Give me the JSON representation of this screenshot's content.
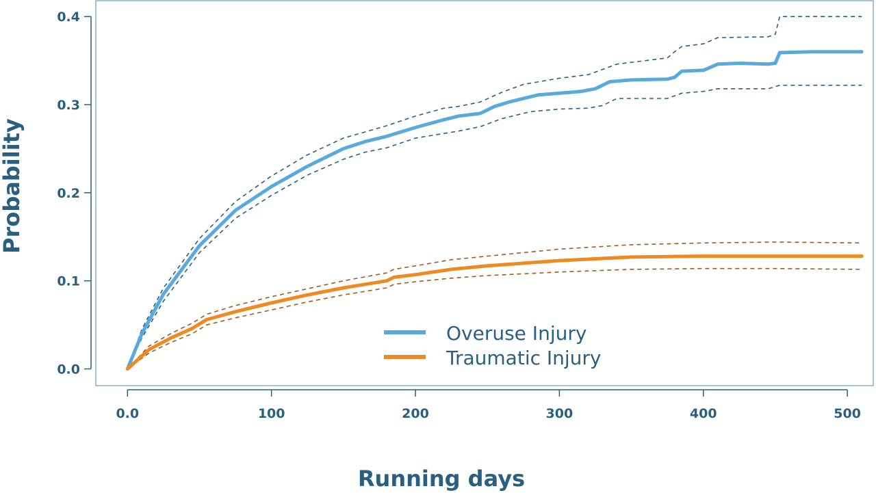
{
  "chart_data": {
    "type": "line",
    "title": "",
    "xlabel": "Running days",
    "ylabel": "Probability",
    "xlim": [
      -22,
      518
    ],
    "ylim": [
      -0.019,
      0.418
    ],
    "x_ticks": [
      0,
      100,
      200,
      300,
      400,
      500
    ],
    "x_tick_labels": [
      "0.0",
      "100",
      "200",
      "300",
      "400",
      "500"
    ],
    "y_ticks": [
      0.0,
      0.1,
      0.2,
      0.3,
      0.4
    ],
    "y_tick_labels": [
      "0.0",
      "0.1",
      "0.2",
      "0.3",
      "0.4"
    ],
    "grid": false,
    "legend_position": "center-bottom",
    "colors": {
      "overuse": "#5aa9dc",
      "overuse_ci": "#2a5f80",
      "traumatic": "#ee8a22",
      "traumatic_ci": "#a05a1e",
      "axis": "#2a5f80",
      "frame": "#8fb3c8"
    },
    "series": [
      {
        "name": "Overuse Injury",
        "style": "solid",
        "x": [
          0,
          10,
          25,
          50,
          75,
          100,
          125,
          150,
          165,
          180,
          200,
          220,
          230,
          245,
          255,
          265,
          285,
          300,
          315,
          325,
          335,
          350,
          375,
          380,
          385,
          400,
          410,
          425,
          445,
          450,
          453,
          475,
          510
        ],
        "y": [
          0.0,
          0.04,
          0.085,
          0.14,
          0.18,
          0.207,
          0.23,
          0.25,
          0.258,
          0.264,
          0.274,
          0.283,
          0.287,
          0.29,
          0.298,
          0.303,
          0.311,
          0.313,
          0.315,
          0.318,
          0.326,
          0.328,
          0.329,
          0.331,
          0.338,
          0.339,
          0.346,
          0.347,
          0.346,
          0.347,
          0.359,
          0.36,
          0.36
        ]
      },
      {
        "name": "Overuse Injury upper CI",
        "style": "dashed",
        "x": [
          0,
          10,
          25,
          50,
          75,
          100,
          125,
          150,
          165,
          180,
          200,
          220,
          230,
          245,
          260,
          275,
          300,
          320,
          330,
          340,
          375,
          380,
          385,
          400,
          410,
          445,
          450,
          453,
          510
        ],
        "y": [
          0.0,
          0.045,
          0.092,
          0.148,
          0.19,
          0.219,
          0.243,
          0.262,
          0.269,
          0.276,
          0.287,
          0.296,
          0.298,
          0.303,
          0.314,
          0.323,
          0.33,
          0.334,
          0.34,
          0.346,
          0.353,
          0.36,
          0.366,
          0.369,
          0.376,
          0.377,
          0.38,
          0.4,
          0.4
        ]
      },
      {
        "name": "Overuse Injury lower CI",
        "style": "dashed",
        "x": [
          0,
          10,
          25,
          50,
          75,
          100,
          125,
          150,
          165,
          180,
          200,
          230,
          245,
          260,
          280,
          300,
          320,
          330,
          340,
          375,
          385,
          400,
          410,
          445,
          453,
          510
        ],
        "y": [
          0.0,
          0.035,
          0.077,
          0.132,
          0.171,
          0.197,
          0.22,
          0.238,
          0.246,
          0.251,
          0.262,
          0.27,
          0.275,
          0.284,
          0.292,
          0.295,
          0.296,
          0.299,
          0.307,
          0.307,
          0.313,
          0.315,
          0.318,
          0.318,
          0.322,
          0.322
        ]
      },
      {
        "name": "Traumatic Injury",
        "style": "solid",
        "x": [
          0,
          15,
          30,
          45,
          55,
          75,
          100,
          125,
          150,
          180,
          185,
          200,
          225,
          250,
          300,
          350,
          400,
          450,
          510
        ],
        "y": [
          0.0,
          0.022,
          0.035,
          0.046,
          0.056,
          0.065,
          0.075,
          0.084,
          0.092,
          0.1,
          0.104,
          0.107,
          0.113,
          0.117,
          0.123,
          0.127,
          0.128,
          0.128,
          0.128
        ]
      },
      {
        "name": "Traumatic Injury upper CI",
        "style": "dashed",
        "x": [
          0,
          15,
          30,
          45,
          55,
          75,
          100,
          125,
          150,
          180,
          185,
          200,
          225,
          250,
          300,
          350,
          400,
          450,
          510
        ],
        "y": [
          0.0,
          0.026,
          0.04,
          0.052,
          0.062,
          0.072,
          0.082,
          0.091,
          0.1,
          0.109,
          0.113,
          0.117,
          0.124,
          0.128,
          0.136,
          0.141,
          0.143,
          0.144,
          0.143
        ]
      },
      {
        "name": "Traumatic Injury lower CI",
        "style": "dashed",
        "x": [
          0,
          15,
          30,
          45,
          55,
          75,
          100,
          125,
          150,
          180,
          185,
          200,
          225,
          250,
          300,
          350,
          400,
          450,
          510
        ],
        "y": [
          0.0,
          0.018,
          0.03,
          0.04,
          0.05,
          0.058,
          0.067,
          0.076,
          0.084,
          0.092,
          0.096,
          0.099,
          0.103,
          0.106,
          0.11,
          0.113,
          0.114,
          0.114,
          0.113
        ]
      }
    ],
    "legend": [
      {
        "label": "Overuse Injury",
        "color": "#5aa9dc"
      },
      {
        "label": "Traumatic Injury",
        "color": "#ee8a22"
      }
    ]
  }
}
